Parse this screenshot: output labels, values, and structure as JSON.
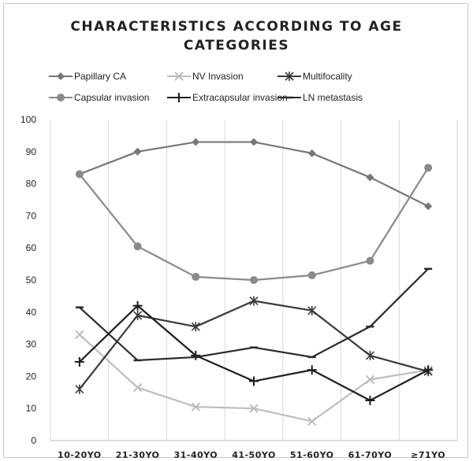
{
  "chart_data": {
    "type": "line",
    "title_lines": [
      "CHARACTERISTICS ACCORDING TO AGE",
      "CATEGORIES"
    ],
    "categories": [
      "10-20YO",
      "21-30YO",
      "31-40YO",
      "41-50YO",
      "51-60YO",
      "61-70YO",
      "≥71YO"
    ],
    "ylim": [
      0,
      100
    ],
    "yticks": [
      0,
      10,
      20,
      30,
      40,
      50,
      60,
      70,
      80,
      90,
      100
    ],
    "grid": "vertical",
    "legend_position": "top",
    "series": [
      {
        "name": "Papillary CA",
        "marker": "diamond",
        "color": "#777777",
        "values": [
          83,
          90,
          93,
          93,
          89.5,
          82,
          73
        ]
      },
      {
        "name": "NV Invasion",
        "marker": "x",
        "color": "#bdbdbd",
        "values": [
          33,
          16.5,
          10.5,
          10,
          6,
          19,
          22
        ]
      },
      {
        "name": "Multifocality",
        "marker": "asterisk",
        "color": "#3a3a3a",
        "values": [
          16,
          39,
          35.5,
          43.5,
          40.5,
          26.5,
          21.5
        ]
      },
      {
        "name": "Capsular invasion",
        "marker": "circle",
        "color": "#8a8a8a",
        "values": [
          83,
          60.5,
          51,
          50,
          51.5,
          56,
          85
        ]
      },
      {
        "name": "Extracapsular invasion",
        "marker": "plus",
        "color": "#1e1e1e",
        "values": [
          24.5,
          42,
          26.5,
          18.5,
          22,
          12.5,
          22
        ]
      },
      {
        "name": "LN metastasis",
        "marker": "dash",
        "color": "#2a2a2a",
        "values": [
          41.5,
          25,
          26,
          29,
          26,
          35.5,
          53.5
        ]
      }
    ]
  }
}
